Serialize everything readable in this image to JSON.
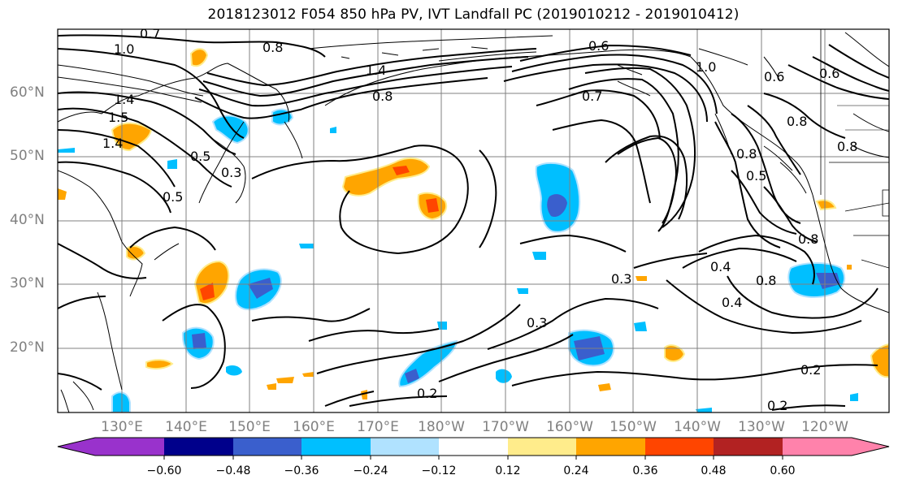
{
  "title": "2018123012 F054 850 hPa PV, IVT Landfall PC (2019010212 - 2019010412)",
  "map": {
    "lat_labels": [
      "60°N",
      "50°N",
      "40°N",
      "30°N",
      "20°N"
    ],
    "lon_labels": [
      "130°E",
      "140°E",
      "150°E",
      "160°E",
      "170°E",
      "180°W",
      "170°W",
      "160°W",
      "150°W",
      "140°W",
      "130°W",
      "120°W"
    ],
    "contour_labels": [
      "0.7",
      "1.0",
      "0.8",
      "0.6",
      "0.6",
      "0.6",
      "0.8",
      "1.4",
      "0.8",
      "1.4",
      "1.5",
      "1.4",
      "0.3",
      "0.5",
      "0.5",
      "0.8",
      "0.4",
      "0.4",
      "0.8",
      "0.3",
      "0.3",
      "0.2",
      "0.2",
      "0.2",
      "0.5",
      "0.8",
      "1.0",
      "0.7",
      "0.8"
    ]
  },
  "colorbar": {
    "colors": [
      "#9932cc",
      "#00008b",
      "#3a5fcd",
      "#00bfff",
      "#b0e2ff",
      "#ffffff",
      "#ffec8b",
      "#ffa500",
      "#ff4500",
      "#b22222",
      "#ff82ab"
    ],
    "labels": [
      "−0.60",
      "−0.48",
      "−0.36",
      "−0.24",
      "−0.12",
      "0.12",
      "0.24",
      "0.36",
      "0.48",
      "0.60"
    ]
  }
}
